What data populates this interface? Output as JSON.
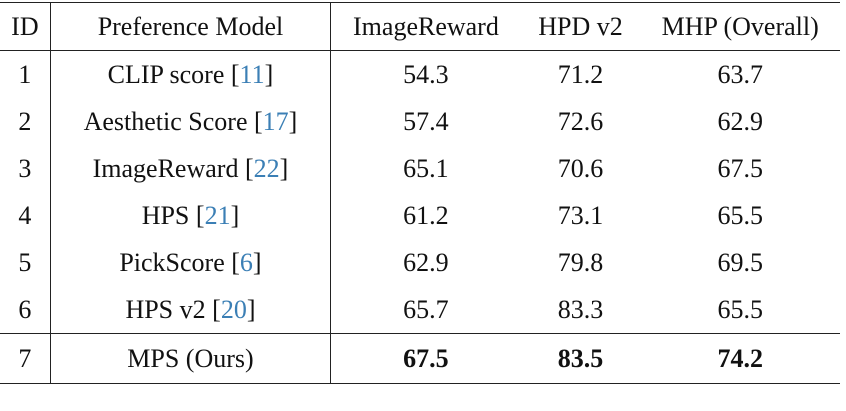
{
  "table": {
    "header": [
      "ID",
      "Preference Model",
      "ImageReward",
      "HPD v2",
      "MHP (Overall)"
    ],
    "rows": [
      {
        "id": "1",
        "model": "CLIP score",
        "citation": "[11]",
        "values": [
          54.3,
          71.2,
          63.7
        ]
      },
      {
        "id": "2",
        "model": "Aesthetic Score",
        "citation": "[17]",
        "values": [
          57.4,
          72.6,
          62.9
        ]
      },
      {
        "id": "3",
        "model": "ImageReward",
        "citation": "[22]",
        "values": [
          65.1,
          70.6,
          67.5
        ]
      },
      {
        "id": "4",
        "model": "HPS",
        "citation": "[21]",
        "values": [
          61.2,
          73.1,
          65.5
        ]
      },
      {
        "id": "5",
        "model": "PickScore",
        "citation": "[6]",
        "values": [
          62.9,
          79.8,
          69.5
        ]
      },
      {
        "id": "6",
        "model": "HPS v2",
        "citation": "[20]",
        "values": [
          65.7,
          83.3,
          65.5
        ]
      },
      {
        "id": "7",
        "model": "MPS (Ours)",
        "values": [
          67.5,
          83.5,
          74.2
        ],
        "bold": true
      }
    ]
  }
}
